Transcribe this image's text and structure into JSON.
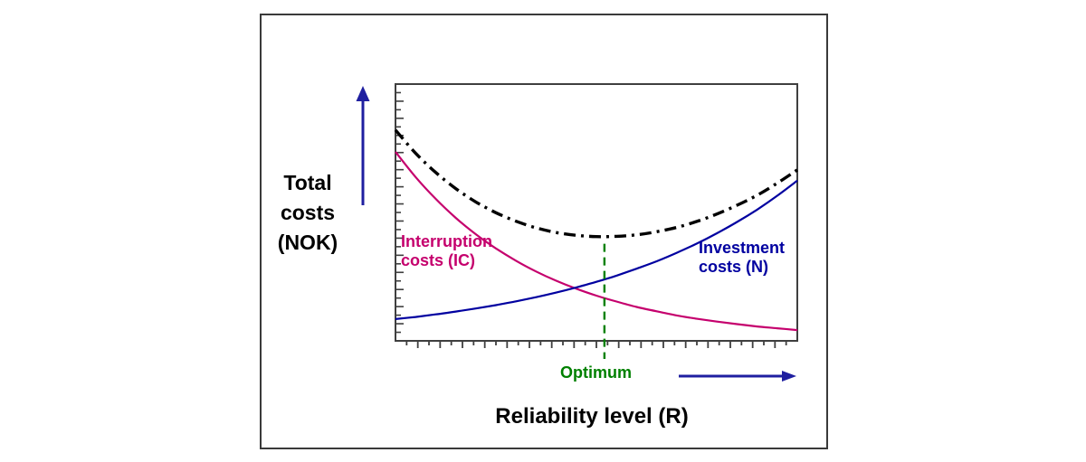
{
  "labels": {
    "y_axis_title": "Total\ncosts\n(NOK)",
    "x_axis_title": "Reliability level (R)",
    "interruption": "Interruption\ncosts (IC)",
    "investment": "Investment\ncosts (N)",
    "optimum": "Optimum"
  },
  "colors": {
    "interruption_series": "#C5006D",
    "investment_series": "#0000A0",
    "total_series": "#000000",
    "optimum_green": "#008000",
    "arrow_blue": "#1F1FA0",
    "axis": "#3F3F3F",
    "text_black": "#000000",
    "frame_border": "#3A3A3A"
  },
  "chart_data": {
    "type": "line",
    "title": "",
    "xlabel": "Reliability level (R)",
    "ylabel": "Total costs (NOK)",
    "grid": false,
    "legend": "inline-labels",
    "x_axis": {
      "range": [
        0,
        1
      ],
      "unitless": true,
      "minor_tick_intervals": 36
    },
    "y_axis": {
      "range": [
        0,
        1
      ],
      "unitless": true,
      "minor_tick_intervals": 30
    },
    "x": [
      0,
      0.05,
      0.1,
      0.15,
      0.2,
      0.25,
      0.3,
      0.35,
      0.4,
      0.45,
      0.5,
      0.55,
      0.6,
      0.65,
      0.7,
      0.75,
      0.8,
      0.85,
      0.9,
      0.95,
      1
    ],
    "series": [
      {
        "name": "Interruption costs (IC)",
        "key": "interruption",
        "style": "solid",
        "color": "#C5006D",
        "values": [
          0.736,
          0.638,
          0.553,
          0.479,
          0.415,
          0.36,
          0.312,
          0.27,
          0.234,
          0.203,
          0.176,
          0.153,
          0.132,
          0.115,
          0.099,
          0.086,
          0.075,
          0.065,
          0.056,
          0.049,
          0.042
        ]
      },
      {
        "name": "Investment costs (N)",
        "key": "investment",
        "style": "solid",
        "color": "#0000A0",
        "values": [
          0.085,
          0.093,
          0.103,
          0.114,
          0.126,
          0.139,
          0.154,
          0.17,
          0.188,
          0.208,
          0.23,
          0.254,
          0.281,
          0.31,
          0.343,
          0.379,
          0.419,
          0.463,
          0.511,
          0.565,
          0.624
        ]
      },
      {
        "name": "Total costs",
        "key": "total",
        "style": "dash-dot",
        "color": "#000000",
        "values": [
          0.821,
          0.731,
          0.656,
          0.593,
          0.541,
          0.499,
          0.466,
          0.44,
          0.422,
          0.411,
          0.406,
          0.407,
          0.413,
          0.425,
          0.442,
          0.465,
          0.494,
          0.528,
          0.567,
          0.614,
          0.666
        ]
      }
    ],
    "annotations": [
      {
        "type": "vline",
        "label": "Optimum",
        "x": 0.52,
        "style": "dashed",
        "color": "#008000"
      }
    ]
  }
}
